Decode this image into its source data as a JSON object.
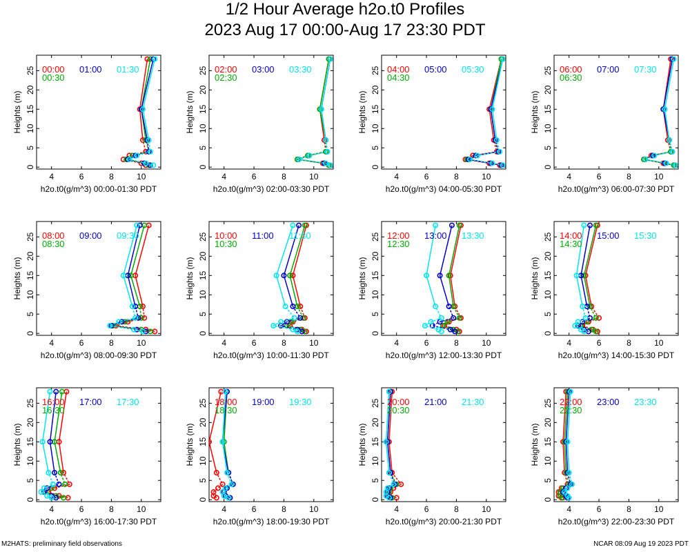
{
  "page": {
    "title": "1/2 Hour Average h2o.t0 Profiles",
    "subtitle": "2023 Aug 17 00:00-Aug 17 23:30 PDT",
    "footer_left": "M2HATS: preliminary field observations",
    "footer_right": "NCAR 08:09 Aug 19 2023 PDT"
  },
  "colors": {
    "series_a": "#ff0000",
    "series_b": "#00aa00",
    "series_c": "#0000cc",
    "series_d": "#00e5ee"
  },
  "chart_data": {
    "type": "line",
    "heights": [
      0.5,
      1,
      2,
      3,
      4,
      7,
      15,
      28
    ],
    "xlim": [
      3,
      11.3
    ],
    "ylim": [
      -0.5,
      29
    ],
    "x_ticks": [
      4,
      6,
      8,
      10
    ],
    "y_ticks": [
      0,
      5,
      10,
      15,
      20,
      25
    ],
    "y_label": "Heights (m)",
    "panels": [
      {
        "x_label": "h2o.t0(g/m^3) 00:00-01:30 PDT",
        "series": [
          {
            "name": "00:00",
            "values": [
              10.3,
              10.0,
              8.8,
              9.2,
              10.3,
              10.1,
              9.9,
              10.4
            ]
          },
          {
            "name": "00:30",
            "values": [
              10.5,
              10.2,
              9.0,
              9.4,
              10.5,
              10.3,
              10.0,
              10.6
            ]
          },
          {
            "name": "01:00",
            "values": [
              10.6,
              10.2,
              9.1,
              9.6,
              10.5,
              10.4,
              10.0,
              10.8
            ]
          },
          {
            "name": "01:30",
            "values": [
              10.8,
              10.3,
              9.2,
              9.7,
              10.6,
              10.5,
              10.1,
              10.9
            ]
          }
        ]
      },
      {
        "x_label": "h2o.t0(g/m^3) 02:00-03:30 PDT",
        "series": [
          {
            "name": "02:00",
            "values": [
              11.0,
              10.6,
              8.9,
              9.6,
              10.8,
              10.7,
              10.4,
              11.0
            ]
          },
          {
            "name": "02:30",
            "values": [
              11.0,
              10.7,
              8.9,
              9.6,
              10.8,
              10.8,
              10.4,
              11.0
            ]
          },
          {
            "name": "03:00",
            "values": [
              11.1,
              10.7,
              9.0,
              9.7,
              10.9,
              10.8,
              10.5,
              11.1
            ]
          },
          {
            "name": "03:30",
            "values": [
              11.1,
              10.8,
              9.0,
              9.7,
              10.9,
              10.8,
              10.5,
              11.1
            ]
          }
        ]
      },
      {
        "x_label": "h2o.t0(g/m^3) 04:00-05:30 PDT",
        "series": [
          {
            "name": "04:00",
            "values": [
              10.9,
              10.2,
              8.6,
              9.1,
              10.7,
              10.5,
              10.2,
              11.0
            ]
          },
          {
            "name": "04:30",
            "values": [
              11.0,
              10.3,
              8.7,
              9.3,
              10.8,
              10.6,
              10.3,
              11.0
            ]
          },
          {
            "name": "05:00",
            "values": [
              11.0,
              10.3,
              8.8,
              9.3,
              10.8,
              10.6,
              10.3,
              11.1
            ]
          },
          {
            "name": "05:30",
            "values": [
              11.1,
              10.4,
              8.9,
              9.4,
              10.9,
              10.7,
              10.4,
              11.1
            ]
          }
        ]
      },
      {
        "x_label": "h2o.t0(g/m^3) 06:00-07:30 PDT",
        "series": [
          {
            "name": "06:00",
            "values": [
              11.0,
              10.3,
              9.0,
              9.5,
              10.8,
              10.6,
              10.3,
              10.8
            ]
          },
          {
            "name": "06:30",
            "values": [
              11.0,
              10.4,
              9.0,
              9.6,
              10.8,
              10.7,
              10.3,
              10.9
            ]
          },
          {
            "name": "07:00",
            "values": [
              11.1,
              10.4,
              9.1,
              9.6,
              10.9,
              10.7,
              10.3,
              10.9
            ]
          },
          {
            "name": "07:30",
            "values": [
              11.1,
              10.5,
              9.1,
              9.7,
              10.9,
              10.7,
              10.4,
              11.0
            ]
          }
        ]
      },
      {
        "x_label": "h2o.t0(g/m^3) 08:00-09:30 PDT",
        "series": [
          {
            "name": "08:00",
            "values": [
              10.9,
              10.3,
              8.3,
              9.1,
              10.2,
              10.1,
              9.6,
              10.5
            ]
          },
          {
            "name": "08:30",
            "values": [
              10.6,
              10.0,
              8.1,
              8.9,
              10.0,
              9.9,
              9.3,
              10.2
            ]
          },
          {
            "name": "09:00",
            "values": [
              10.3,
              9.7,
              8.0,
              8.7,
              9.8,
              9.6,
              9.1,
              9.9
            ]
          },
          {
            "name": "09:30",
            "values": [
              10.1,
              9.5,
              7.9,
              8.5,
              9.6,
              9.4,
              8.8,
              9.7
            ]
          }
        ]
      },
      {
        "x_label": "h2o.t0(g/m^3) 10:00-11:30 PDT",
        "series": [
          {
            "name": "10:00",
            "values": [
              9.5,
              9.2,
              8.4,
              8.6,
              9.4,
              9.1,
              8.6,
              9.5
            ]
          },
          {
            "name": "10:30",
            "values": [
              9.4,
              9.1,
              8.2,
              8.5,
              9.3,
              8.9,
              8.4,
              9.4
            ]
          },
          {
            "name": "11:00",
            "values": [
              9.2,
              8.9,
              7.8,
              8.2,
              9.1,
              8.6,
              8.0,
              9.0
            ]
          },
          {
            "name": "11:30",
            "values": [
              8.9,
              8.6,
              7.3,
              7.8,
              8.7,
              8.1,
              7.5,
              8.6
            ]
          }
        ]
      },
      {
        "x_label": "h2o.t0(g/m^3) 12:00-13:30 PDT",
        "series": [
          {
            "name": "12:00",
            "values": [
              8.2,
              8.0,
              7.2,
              7.5,
              8.3,
              7.9,
              7.6,
              8.3
            ]
          },
          {
            "name": "12:30",
            "values": [
              8.1,
              7.8,
              7.1,
              7.4,
              8.2,
              7.8,
              7.5,
              8.2
            ]
          },
          {
            "name": "13:00",
            "values": [
              7.9,
              7.6,
              6.4,
              6.9,
              7.8,
              7.5,
              6.9,
              7.7
            ]
          },
          {
            "name": "13:30",
            "values": [
              7.0,
              6.8,
              5.9,
              6.3,
              7.0,
              6.6,
              6.0,
              6.6
            ]
          }
        ]
      },
      {
        "x_label": "h2o.t0(g/m^3) 14:00-15:30 PDT",
        "series": [
          {
            "name": "14:00",
            "values": [
              5.9,
              5.6,
              4.9,
              5.3,
              6.0,
              5.5,
              5.1,
              5.9
            ]
          },
          {
            "name": "14:30",
            "values": [
              5.8,
              5.5,
              4.8,
              5.2,
              5.8,
              5.4,
              5.0,
              5.8
            ]
          },
          {
            "name": "15:00",
            "values": [
              5.3,
              5.0,
              4.6,
              4.9,
              5.4,
              5.2,
              4.8,
              5.4
            ]
          },
          {
            "name": "15:30",
            "values": [
              5.0,
              4.8,
              4.4,
              4.6,
              5.1,
              4.9,
              4.5,
              5.0
            ]
          }
        ]
      },
      {
        "x_label": "h2o.t0(g/m^3) 16:00-17:30 PDT",
        "series": [
          {
            "name": "16:00",
            "values": [
              5.1,
              4.5,
              3.8,
              4.2,
              5.2,
              4.8,
              4.5,
              5.0
            ]
          },
          {
            "name": "16:30",
            "values": [
              4.8,
              4.3,
              3.6,
              4.0,
              4.9,
              4.6,
              4.2,
              4.7
            ]
          },
          {
            "name": "17:00",
            "values": [
              4.3,
              4.0,
              3.5,
              3.7,
              4.5,
              4.2,
              3.9,
              4.3
            ]
          },
          {
            "name": "17:30",
            "values": [
              4.0,
              3.7,
              3.3,
              3.5,
              4.1,
              3.8,
              3.4,
              3.9
            ]
          }
        ]
      },
      {
        "x_label": "h2o.t0(g/m^3) 18:00-19:30 PDT",
        "series": [
          {
            "name": "18:00",
            "values": [
              3.5,
              3.3,
              3.3,
              3.6,
              3.9,
              3.5,
              3.0,
              3.8
            ]
          },
          {
            "name": "18:30",
            "values": [
              4.4,
              4.1,
              4.0,
              4.1,
              4.6,
              4.3,
              4.0,
              4.2
            ]
          },
          {
            "name": "19:00",
            "values": [
              4.4,
              4.1,
              4.0,
              4.2,
              4.6,
              4.3,
              3.9,
              4.2
            ]
          },
          {
            "name": "19:30",
            "values": [
              4.3,
              4.0,
              3.9,
              4.1,
              4.5,
              4.2,
              3.9,
              4.1
            ]
          }
        ]
      },
      {
        "x_label": "h2o.t0(g/m^3) 20:00-21:30 PDT",
        "series": [
          {
            "name": "20:00",
            "values": [
              4.0,
              3.5,
              3.6,
              3.8,
              4.3,
              3.7,
              3.5,
              3.7
            ]
          },
          {
            "name": "20:30",
            "values": [
              3.7,
              3.4,
              3.5,
              3.6,
              4.0,
              3.6,
              3.4,
              3.6
            ]
          },
          {
            "name": "21:00",
            "values": [
              3.6,
              3.4,
              3.4,
              3.5,
              3.9,
              3.6,
              3.4,
              3.6
            ]
          },
          {
            "name": "21:30",
            "values": [
              3.5,
              3.3,
              3.3,
              3.4,
              3.8,
              3.5,
              3.3,
              3.5
            ]
          }
        ]
      },
      {
        "x_label": "h2o.t0(g/m^3) 22:00-23:30 PDT",
        "series": [
          {
            "name": "22:00",
            "values": [
              3.5,
              3.3,
              3.3,
              3.5,
              3.9,
              3.7,
              3.6,
              3.8
            ]
          },
          {
            "name": "22:30",
            "values": [
              3.6,
              3.4,
              3.4,
              3.6,
              4.0,
              3.8,
              3.7,
              3.9
            ]
          },
          {
            "name": "23:00",
            "values": [
              3.9,
              3.8,
              3.6,
              3.8,
              4.1,
              3.9,
              3.8,
              4.0
            ]
          },
          {
            "name": "23:30",
            "values": [
              4.0,
              3.9,
              3.7,
              3.9,
              4.2,
              4.0,
              3.9,
              4.1
            ]
          }
        ]
      }
    ]
  }
}
